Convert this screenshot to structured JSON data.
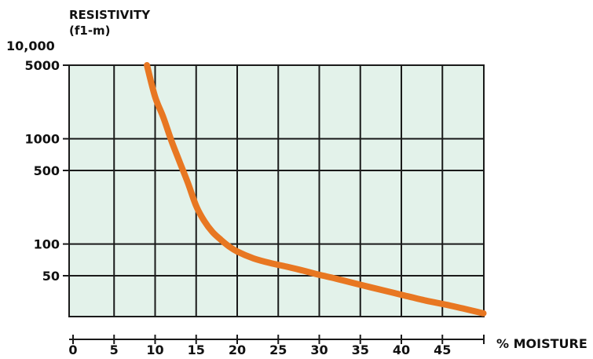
{
  "chart_data": {
    "type": "line",
    "ylabel_line1": "RESISTIVITY",
    "ylabel_line2": "(f1-m)",
    "xlabel": "% MOISTURE",
    "y_scale": "log",
    "y_top_label": "10,000",
    "y_ticks": [
      {
        "value": 5000,
        "label": "5000"
      },
      {
        "value": 1000,
        "label": "1000"
      },
      {
        "value": 500,
        "label": "500"
      },
      {
        "value": 100,
        "label": "100"
      },
      {
        "value": 50,
        "label": "50"
      }
    ],
    "x_ticks": [
      0,
      5,
      10,
      15,
      20,
      25,
      30,
      35,
      40,
      45
    ],
    "xlim": [
      0,
      50
    ],
    "grid": true,
    "colors": {
      "line": "#e87722",
      "plot_bg": "#e3f2ea",
      "grid": "#1a1a1a"
    },
    "series": [
      {
        "x": [
          9,
          10,
          11,
          12,
          13,
          14,
          15,
          16,
          17,
          18,
          19,
          20,
          22,
          24,
          26,
          28,
          30,
          32,
          35,
          38,
          40,
          43,
          46,
          50
        ],
        "y": [
          5000,
          2500,
          1600,
          950,
          600,
          380,
          230,
          165,
          130,
          110,
          95,
          85,
          73,
          66,
          61,
          56,
          51,
          47,
          41,
          36,
          33,
          29,
          26,
          22
        ]
      }
    ]
  }
}
